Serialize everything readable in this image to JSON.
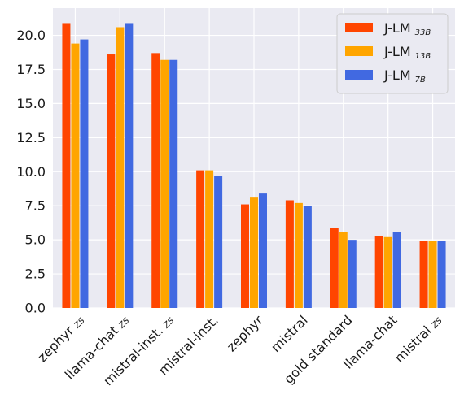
{
  "chart_data": {
    "type": "bar",
    "categories": [
      {
        "main": "zephyr",
        "sub": "ZS"
      },
      {
        "main": "llama-chat",
        "sub": "ZS"
      },
      {
        "main": "mistral-inst.",
        "sub": "ZS"
      },
      {
        "main": "mistral-inst.",
        "sub": ""
      },
      {
        "main": "zephyr",
        "sub": ""
      },
      {
        "main": "mistral",
        "sub": ""
      },
      {
        "main": "gold standard",
        "sub": ""
      },
      {
        "main": "llama-chat",
        "sub": ""
      },
      {
        "main": "mistral",
        "sub": "ZS"
      }
    ],
    "series": [
      {
        "name": "J-LM",
        "sub": "33B",
        "color": "#ff4500",
        "values": [
          20.9,
          18.6,
          18.7,
          10.1,
          7.6,
          7.9,
          5.9,
          5.3,
          4.9
        ]
      },
      {
        "name": "J-LM",
        "sub": "13B",
        "color": "#ffa500",
        "values": [
          19.4,
          20.6,
          18.2,
          10.1,
          8.1,
          7.7,
          5.6,
          5.2,
          4.9
        ]
      },
      {
        "name": "J-LM",
        "sub": "7B",
        "color": "#4169e1",
        "values": [
          19.7,
          20.9,
          18.2,
          9.7,
          8.4,
          7.5,
          5.0,
          5.6,
          4.9
        ]
      }
    ],
    "yticks": [
      "0.0",
      "2.5",
      "5.0",
      "7.5",
      "10.0",
      "12.5",
      "15.0",
      "17.5",
      "20.0"
    ],
    "ylim": [
      0,
      22
    ],
    "grid": true,
    "legend_position": "top-right",
    "title": "",
    "xlabel": "",
    "ylabel": ""
  }
}
